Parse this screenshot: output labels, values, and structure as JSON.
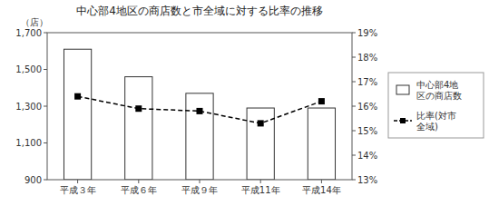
{
  "chart_data": {
    "type": "bar",
    "title": "中心部4地区の商店数と市全域に対する比率の推移",
    "categories": [
      "平成３年",
      "平成６年",
      "平成９年",
      "平成11年",
      "平成14年"
    ],
    "ylabel": "（店）",
    "ylim": [
      900,
      1700
    ],
    "yticks": [
      900,
      {
        "value": 1100,
        "label": "1,100"
      },
      {
        "value": 1300,
        "label": "1,300"
      },
      {
        "value": 1500,
        "label": "1,500"
      },
      {
        "value": 1700,
        "label": "1,700"
      }
    ],
    "y2lim": [
      13,
      19
    ],
    "y2ticks": [
      {
        "value": 13,
        "label": "13%"
      },
      {
        "value": 14,
        "label": "14%"
      },
      {
        "value": 15,
        "label": "15%"
      },
      {
        "value": 16,
        "label": "16%"
      },
      {
        "value": 17,
        "label": "17%"
      },
      {
        "value": 18,
        "label": "18%"
      },
      {
        "value": 19,
        "label": "19%"
      }
    ],
    "legend": "right",
    "grid": false,
    "series": [
      {
        "name": "中心部4地\n区の商店数",
        "type": "bar",
        "color": "#ffffff",
        "values": [
          1610,
          1460,
          1370,
          1290,
          1290
        ]
      },
      {
        "name": "比率(対市\n全域)",
        "type": "line",
        "axis": "y2",
        "color": "#000000",
        "marker": "square",
        "line_style": "dashed",
        "values": [
          16.4,
          15.9,
          15.8,
          15.3,
          16.2
        ]
      }
    ]
  }
}
